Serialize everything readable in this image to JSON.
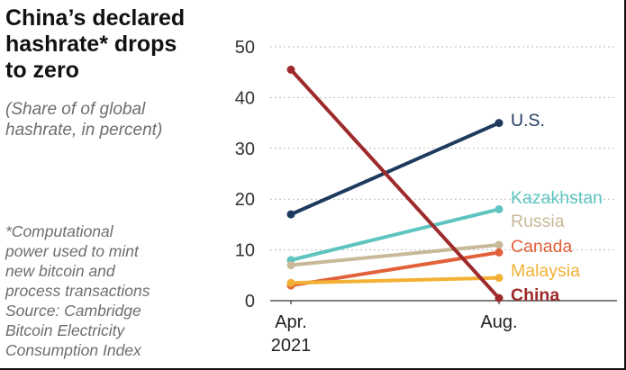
{
  "title_lines": [
    "China’s declared",
    "hashrate* drops",
    "to zero"
  ],
  "subtitle_lines": [
    "(Share of of global",
    "hashrate, in percent)"
  ],
  "footnote_lines": [
    "*Computational",
    "power used to mint",
    "new bitcoin and",
    "process transactions",
    "Source: Cambridge",
    "Bitcoin Electricity",
    "Consumption Index"
  ],
  "chart_data": {
    "type": "line",
    "title": "China’s declared hashrate* drops to zero",
    "subtitle": "(Share of of global hashrate, in percent)",
    "xlabel": "",
    "ylabel": "",
    "ylim": [
      0,
      50
    ],
    "yticks": [
      "0",
      "10",
      "20",
      "30",
      "40",
      "50"
    ],
    "categories": [
      [
        "Apr.",
        "2021"
      ],
      [
        "Aug."
      ]
    ],
    "grid": "horizontal dotted",
    "legend": "direct labels at right end of lines",
    "series": [
      {
        "name": "U.S.",
        "values": [
          17,
          35
        ],
        "color": "#1f3a5f",
        "bold": false
      },
      {
        "name": "Kazakhstan",
        "values": [
          8,
          18
        ],
        "color": "#5ec4c0",
        "bold": false
      },
      {
        "name": "Russia",
        "values": [
          7,
          11
        ],
        "color": "#c8b998",
        "bold": false
      },
      {
        "name": "Canada",
        "values": [
          3,
          9.5
        ],
        "color": "#e2613a",
        "bold": false
      },
      {
        "name": "Malaysia",
        "values": [
          3.5,
          4.5
        ],
        "color": "#f2b134",
        "bold": false
      },
      {
        "name": "China",
        "values": [
          45.5,
          0.5
        ],
        "color": "#9e2a2b",
        "bold": true
      }
    ]
  }
}
